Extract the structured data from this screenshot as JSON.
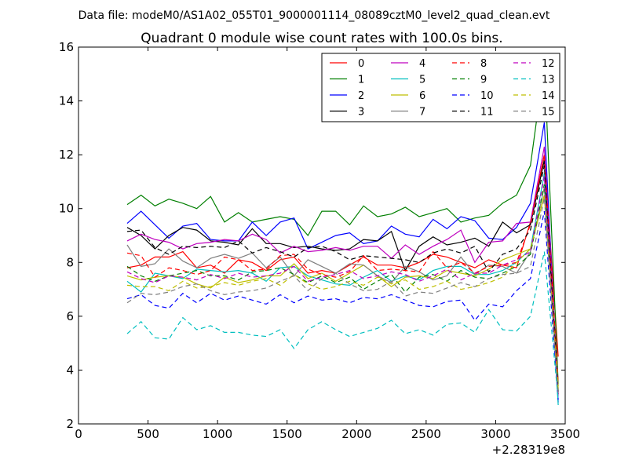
{
  "header": {
    "file_label": "Data file: modeM0/AS1A02_055T01_9000001114_08089cztM0_level2_quad_clean.evt"
  },
  "chart_data": {
    "type": "line",
    "title": "Quadrant 0 module wise count rates with 100.0s bins.",
    "xlabel": "",
    "ylabel": "",
    "x_offset_label": "+2.28319e8",
    "xlim": [
      0,
      3500
    ],
    "ylim": [
      2,
      16
    ],
    "xticks": [
      0,
      500,
      1000,
      1500,
      2000,
      2500,
      3000,
      3500
    ],
    "yticks": [
      2,
      4,
      6,
      8,
      10,
      12,
      14,
      16
    ],
    "grid": false,
    "legend_position": "top-right",
    "x": [
      350,
      450,
      550,
      650,
      750,
      850,
      950,
      1050,
      1150,
      1250,
      1350,
      1450,
      1550,
      1650,
      1750,
      1850,
      1950,
      2050,
      2150,
      2250,
      2350,
      2450,
      2550,
      2650,
      2750,
      2850,
      2950,
      3050,
      3150,
      3250,
      3350,
      3450
    ],
    "series": [
      {
        "name": "0",
        "color": "#ff0000",
        "dash": "solid",
        "values": [
          7.8,
          7.9,
          8.2,
          8.2,
          8.4,
          7.8,
          7.9,
          7.6,
          8.1,
          8.0,
          7.7,
          8.1,
          8.2,
          7.6,
          7.7,
          7.6,
          7.9,
          8.2,
          7.9,
          7.9,
          7.8,
          8.0,
          8.3,
          8.2,
          8.0,
          7.8,
          8.1,
          7.9,
          7.8,
          9.5,
          12.0,
          4.5
        ]
      },
      {
        "name": "1",
        "color": "#007f00",
        "dash": "solid",
        "values": [
          10.15,
          10.5,
          10.1,
          10.35,
          10.2,
          10.0,
          10.45,
          9.5,
          9.85,
          9.5,
          9.6,
          9.7,
          9.6,
          9.0,
          9.9,
          9.9,
          9.4,
          10.1,
          9.7,
          9.8,
          10.05,
          9.7,
          9.85,
          10.0,
          9.5,
          9.65,
          9.75,
          10.2,
          10.5,
          11.6,
          15.4,
          3.5
        ]
      },
      {
        "name": "2",
        "color": "#0000ff",
        "dash": "solid",
        "values": [
          9.45,
          9.9,
          9.4,
          8.9,
          9.35,
          9.45,
          8.85,
          8.8,
          8.8,
          9.5,
          9.0,
          9.5,
          9.65,
          8.5,
          8.75,
          9.0,
          9.1,
          8.7,
          8.8,
          9.35,
          9.05,
          8.95,
          9.6,
          9.25,
          9.7,
          9.55,
          8.9,
          8.85,
          9.3,
          10.2,
          13.2,
          2.8
        ]
      },
      {
        "name": "3",
        "color": "#000000",
        "dash": "solid",
        "values": [
          9.3,
          9.0,
          8.5,
          9.0,
          9.3,
          9.2,
          8.8,
          8.75,
          8.65,
          9.25,
          8.7,
          8.7,
          8.55,
          8.6,
          8.5,
          8.45,
          8.5,
          8.85,
          8.8,
          9.15,
          7.7,
          8.6,
          8.95,
          8.65,
          8.75,
          8.9,
          8.6,
          9.5,
          9.1,
          9.4,
          11.8,
          3.1
        ]
      },
      {
        "name": "4",
        "color": "#bf00bf",
        "dash": "solid",
        "values": [
          8.8,
          9.05,
          8.85,
          8.75,
          8.5,
          8.7,
          8.75,
          8.85,
          8.8,
          9.05,
          8.85,
          8.35,
          8.6,
          8.4,
          8.45,
          8.55,
          8.45,
          8.6,
          8.6,
          8.15,
          8.65,
          8.3,
          8.6,
          8.85,
          9.2,
          8.0,
          8.75,
          8.8,
          9.45,
          9.5,
          12.3,
          3.3
        ]
      },
      {
        "name": "5",
        "color": "#00bfbf",
        "dash": "solid",
        "values": [
          7.3,
          6.9,
          7.6,
          7.5,
          7.4,
          7.75,
          7.7,
          7.65,
          7.7,
          7.6,
          7.3,
          7.8,
          7.85,
          7.5,
          7.35,
          7.2,
          7.15,
          7.45,
          7.7,
          7.3,
          7.5,
          7.35,
          7.7,
          7.85,
          7.85,
          7.55,
          7.55,
          7.7,
          8.0,
          8.5,
          11.3,
          2.7
        ]
      },
      {
        "name": "6",
        "color": "#bfbf00",
        "dash": "solid",
        "values": [
          7.5,
          7.35,
          7.45,
          7.5,
          7.45,
          7.2,
          7.05,
          7.45,
          7.25,
          7.35,
          7.5,
          7.5,
          7.95,
          7.4,
          7.6,
          7.3,
          7.6,
          7.9,
          7.5,
          7.1,
          7.45,
          7.5,
          7.4,
          7.7,
          7.6,
          7.5,
          7.75,
          8.1,
          8.3,
          8.5,
          10.5,
          3.4
        ]
      },
      {
        "name": "7",
        "color": "#7f7f7f",
        "dash": "solid",
        "values": [
          8.65,
          7.85,
          7.95,
          8.5,
          8.05,
          7.8,
          8.15,
          8.3,
          8.15,
          8.35,
          7.8,
          8.2,
          7.5,
          8.1,
          7.85,
          7.6,
          7.95,
          7.9,
          7.5,
          7.25,
          7.85,
          7.65,
          7.35,
          7.5,
          8.2,
          7.55,
          7.9,
          7.85,
          7.6,
          8.4,
          10.8,
          3.2
        ]
      },
      {
        "name": "8",
        "color": "#ff0000",
        "dash": "dashed",
        "values": [
          8.35,
          8.25,
          7.45,
          7.8,
          7.7,
          7.55,
          7.7,
          8.2,
          8.1,
          7.7,
          7.75,
          8.25,
          8.3,
          7.75,
          7.55,
          7.45,
          7.65,
          8.25,
          7.7,
          7.75,
          7.7,
          7.65,
          8.4,
          7.8,
          8.0,
          7.6,
          7.85,
          7.9,
          8.0,
          9.4,
          12.0,
          3.5
        ]
      },
      {
        "name": "9",
        "color": "#007f00",
        "dash": "dashed",
        "values": [
          7.85,
          7.5,
          7.3,
          7.5,
          7.6,
          7.7,
          7.5,
          7.5,
          7.35,
          7.65,
          7.7,
          7.8,
          7.55,
          7.25,
          7.5,
          7.25,
          7.45,
          7.0,
          7.3,
          7.55,
          6.9,
          7.45,
          7.55,
          7.3,
          7.7,
          7.45,
          7.4,
          7.6,
          7.85,
          8.3,
          10.9,
          3.2
        ]
      },
      {
        "name": "10",
        "color": "#0000ff",
        "dash": "dashed",
        "values": [
          6.65,
          6.8,
          6.4,
          6.3,
          6.85,
          6.5,
          6.85,
          6.6,
          6.75,
          6.6,
          6.45,
          6.8,
          6.5,
          6.75,
          6.6,
          6.65,
          6.5,
          6.7,
          6.65,
          6.8,
          6.6,
          6.4,
          6.35,
          6.55,
          6.6,
          5.85,
          6.45,
          6.35,
          6.95,
          7.4,
          9.9,
          2.9
        ]
      },
      {
        "name": "11",
        "color": "#000000",
        "dash": "dashed",
        "values": [
          9.15,
          9.2,
          8.55,
          8.3,
          8.6,
          8.55,
          8.6,
          8.55,
          8.8,
          8.35,
          8.55,
          8.4,
          8.2,
          8.55,
          8.6,
          8.4,
          8.1,
          8.25,
          8.2,
          8.15,
          8.1,
          8.0,
          8.35,
          8.5,
          8.35,
          8.6,
          7.65,
          8.3,
          8.5,
          9.2,
          11.6,
          3.2
        ]
      },
      {
        "name": "12",
        "color": "#bf00bf",
        "dash": "dashed",
        "values": [
          7.65,
          7.4,
          7.25,
          7.5,
          7.45,
          7.35,
          7.55,
          7.4,
          7.6,
          7.45,
          7.5,
          7.6,
          7.85,
          7.3,
          7.45,
          7.55,
          7.7,
          7.4,
          7.5,
          7.65,
          7.55,
          7.3,
          7.5,
          7.75,
          7.35,
          7.6,
          7.6,
          7.9,
          8.1,
          8.4,
          11.2,
          3.0
        ]
      },
      {
        "name": "13",
        "color": "#00bfbf",
        "dash": "dashed",
        "values": [
          5.35,
          5.8,
          5.2,
          5.15,
          5.95,
          5.5,
          5.65,
          5.4,
          5.4,
          5.3,
          5.25,
          5.5,
          4.8,
          5.5,
          5.8,
          5.5,
          5.25,
          5.4,
          5.55,
          5.85,
          5.35,
          5.5,
          5.3,
          5.7,
          5.75,
          5.4,
          6.25,
          5.5,
          5.45,
          6.0,
          8.4,
          2.9
        ]
      },
      {
        "name": "14",
        "color": "#bfbf00",
        "dash": "dashed",
        "values": [
          7.15,
          7.1,
          7.1,
          6.95,
          7.3,
          7.05,
          7.1,
          7.25,
          7.15,
          7.3,
          7.4,
          7.15,
          7.55,
          7.2,
          7.0,
          7.1,
          7.3,
          7.15,
          7.45,
          7.2,
          7.35,
          7.0,
          7.1,
          7.3,
          7.0,
          7.1,
          7.25,
          7.45,
          8.0,
          8.5,
          10.5,
          3.3
        ]
      },
      {
        "name": "15",
        "color": "#7f7f7f",
        "dash": "dashed",
        "values": [
          6.5,
          6.85,
          6.8,
          6.9,
          7.1,
          7.2,
          6.95,
          6.8,
          6.9,
          6.95,
          7.05,
          7.3,
          7.5,
          6.95,
          7.4,
          7.6,
          7.2,
          6.95,
          7.0,
          7.3,
          6.75,
          6.9,
          6.85,
          7.05,
          7.25,
          7.1,
          7.4,
          7.55,
          7.6,
          7.85,
          10.4,
          3.1
        ]
      }
    ]
  }
}
